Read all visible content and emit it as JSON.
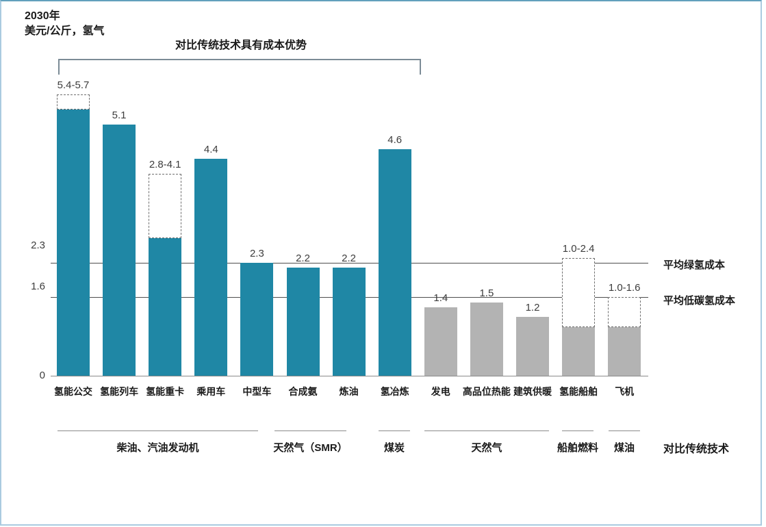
{
  "header": {
    "year": "2030年",
    "unit": "美元/公斤，氢气"
  },
  "bracket": {
    "label": "对比传统技术具有成本优势",
    "from_bar": 0,
    "to_bar": 7
  },
  "chart_data": {
    "type": "bar",
    "title": "2030年",
    "ylabel": "美元/公斤，氢气",
    "ylim": [
      0,
      6
    ],
    "grid": false,
    "colors": {
      "teal": "#1f87a5",
      "gray": "#b3b3b3"
    },
    "y_ticks": [
      {
        "label": "2.3",
        "value": 2.3
      },
      {
        "label": "1.6",
        "value": 1.6
      },
      {
        "label": "0",
        "value": 0
      }
    ],
    "reference_lines": [
      {
        "label": "平均绿氢成本",
        "value": 2.3
      },
      {
        "label": "平均低碳氢成本",
        "value": 1.6
      }
    ],
    "categories": [
      "氢能公交",
      "氢能列车",
      "氢能重卡",
      "乘用车",
      "中型车",
      "合成氨",
      "炼油",
      "氢冶炼",
      "发电",
      "高品位热能",
      "建筑供暖",
      "氢能船舶",
      "飞机"
    ],
    "bars": [
      {
        "category": "氢能公交",
        "label": "5.4-5.7",
        "value": 5.4,
        "value_high": 5.7,
        "group": "teal"
      },
      {
        "category": "氢能列车",
        "label": "5.1",
        "value": 5.1,
        "group": "teal"
      },
      {
        "category": "氢能重卡",
        "label": "2.8-4.1",
        "value": 2.8,
        "value_high": 4.1,
        "group": "teal"
      },
      {
        "category": "乘用车",
        "label": "4.4",
        "value": 4.4,
        "group": "teal"
      },
      {
        "category": "中型车",
        "label": "2.3",
        "value": 2.3,
        "group": "teal"
      },
      {
        "category": "合成氨",
        "label": "2.2",
        "value": 2.2,
        "group": "teal"
      },
      {
        "category": "炼油",
        "label": "2.2",
        "value": 2.2,
        "group": "teal"
      },
      {
        "category": "氢冶炼",
        "label": "4.6",
        "value": 4.6,
        "group": "teal"
      },
      {
        "category": "发电",
        "label": "1.4",
        "value": 1.4,
        "group": "gray"
      },
      {
        "category": "高品位热能",
        "label": "1.5",
        "value": 1.5,
        "group": "gray"
      },
      {
        "category": "建筑供暖",
        "label": "1.2",
        "value": 1.2,
        "group": "gray"
      },
      {
        "category": "氢能船舶",
        "label": "1.0-2.4",
        "value": 1.0,
        "value_high": 2.4,
        "group": "gray"
      },
      {
        "category": "飞机",
        "label": "1.0-1.6",
        "value": 1.0,
        "value_high": 1.6,
        "group": "gray"
      }
    ],
    "comparison_groups": [
      {
        "label": "柴油、汽油发动机",
        "from": 0,
        "to": 4
      },
      {
        "label": "天然气（SMR）",
        "from": 5,
        "to": 6
      },
      {
        "label": "煤炭",
        "from": 7,
        "to": 7
      },
      {
        "label": "天然气",
        "from": 8,
        "to": 10
      },
      {
        "label": "船舶燃料",
        "from": 11,
        "to": 11
      },
      {
        "label": "煤油",
        "from": 12,
        "to": 12
      }
    ],
    "comparison_axis_label": "对比传统技术"
  }
}
